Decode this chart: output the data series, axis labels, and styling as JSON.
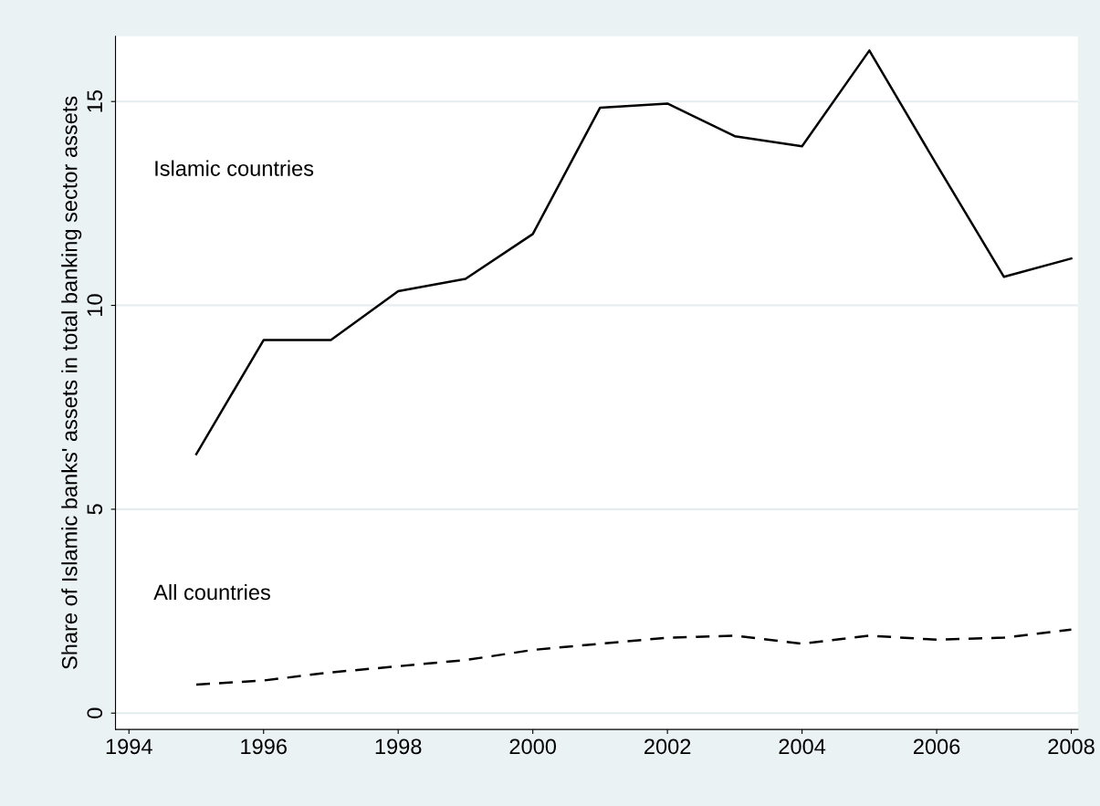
{
  "chart_data": {
    "type": "line",
    "ylabel": "Share of Islamic banks' assets in total banking sector assets",
    "x": [
      1995,
      1996,
      1997,
      1998,
      1999,
      2000,
      2001,
      2002,
      2003,
      2004,
      2005,
      2006,
      2007,
      2008
    ],
    "series": [
      {
        "color": "#000000",
        "line_style": "solid",
        "values": [
          6.35,
          9.15,
          9.15,
          10.35,
          10.65,
          11.75,
          14.85,
          14.95,
          14.15,
          13.9,
          16.25,
          13.45,
          10.7,
          11.15
        ]
      },
      {
        "color": "#000000",
        "line_style": "dashed",
        "values": [
          0.7,
          0.8,
          1.0,
          1.15,
          1.3,
          1.55,
          1.7,
          1.85,
          1.9,
          1.7,
          1.9,
          1.8,
          1.85,
          2.05
        ]
      }
    ],
    "annotations": [
      "Islamic countries",
      "All countries"
    ],
    "xlim": [
      1993.8,
      2008.1
    ],
    "ylim": [
      -0.4,
      16.6
    ],
    "xticks": [
      1994,
      1996,
      1998,
      2000,
      2002,
      2004,
      2006,
      2008
    ],
    "yticks": [
      0,
      5,
      10,
      15
    ],
    "grid": "y",
    "legend": false
  }
}
